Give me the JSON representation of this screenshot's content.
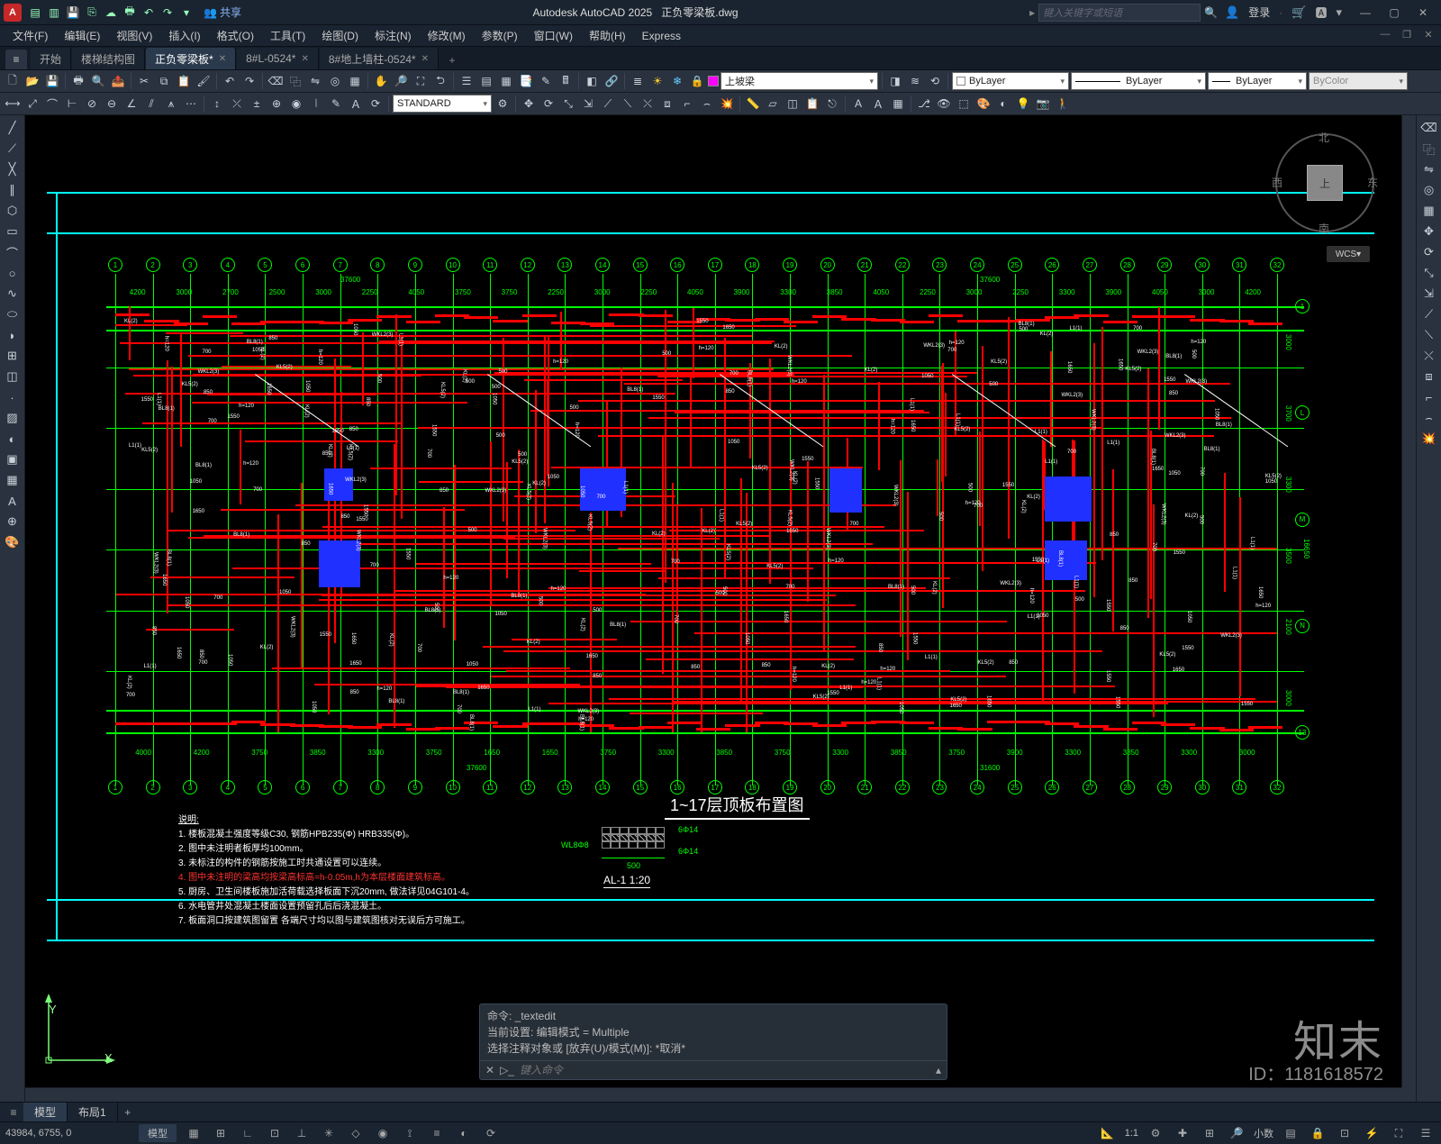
{
  "app": {
    "title": "Autodesk AutoCAD 2025",
    "filename": "正负零梁板.dwg",
    "logo_letter": "A"
  },
  "titlebar": {
    "share": "共享",
    "search_placeholder": "键入关键字或短语",
    "login": "登录"
  },
  "menus": [
    "文件(F)",
    "编辑(E)",
    "视图(V)",
    "插入(I)",
    "格式(O)",
    "工具(T)",
    "绘图(D)",
    "标注(N)",
    "修改(M)",
    "参数(P)",
    "窗口(W)",
    "帮助(H)",
    "Express"
  ],
  "filetabs": {
    "start": "开始",
    "tabs": [
      {
        "label": "楼梯结构图",
        "active": false
      },
      {
        "label": "正负零梁板*",
        "active": true
      },
      {
        "label": "8#L-0524*",
        "active": false
      },
      {
        "label": "8#地上墙柱-0524*",
        "active": false
      }
    ]
  },
  "toolbar2": {
    "layer_name": "上坡梁",
    "style_name": "STANDARD",
    "prop1": "ByLayer",
    "prop2": "ByLayer",
    "prop3": "ByLayer",
    "prop4": "ByColor"
  },
  "viewcube": {
    "top": "上",
    "n": "北",
    "s": "南",
    "e": "东",
    "w": "西"
  },
  "wcs": "WCS",
  "ucs": {
    "x": "X",
    "y": "Y"
  },
  "cmd": {
    "line1": "命令: _textedit",
    "line2": "当前设置: 编辑模式 = Multiple",
    "line3": "选择注释对象或 [放弃(U)/模式(M)]: *取消*",
    "placeholder": "键入命令"
  },
  "bottomtabs": {
    "tabs": [
      "模型",
      "布局1"
    ]
  },
  "status": {
    "coords": "43984, 6755, 0",
    "label_model": "模型",
    "scale": "1:1",
    "decimal": "小数"
  },
  "watermark": {
    "brand": "知末",
    "id": "ID：1181618572"
  },
  "drawing": {
    "title": "1~17层顶板布置图",
    "notes_heading": "说明:",
    "notes": [
      "1. 楼板混凝土强度等级C30, 钢筋HPB235(Φ) HRB335(Φ)。",
      "2. 图中未注明者板厚均100mm。",
      "3. 未标注的构件的钢筋按施工时共通设置可以连续。"
    ],
    "note_red": "4. 图中未注明的梁高均按梁高标高=h-0.05m,h为本层楼面建筑标高。",
    "notes2": [
      "5. 厨房、卫生间楼板施加活荷载选择板面下沉20mm, 做法详见04G101-4。",
      "6. 水电管井处混凝土楼面设置预留孔后后浇混凝土。",
      "7. 板面洞口按建筑图留置 各端尺寸均以图与建筑图核对无误后方可施工。"
    ],
    "legend_title": "AL-1  1:20",
    "legend_dim1": "6Φ14",
    "legend_dim2": "6Φ14",
    "legend_dim3": "500",
    "legend_side": "WL8Φ8",
    "top_dims": [
      "4200",
      "3000",
      "2700",
      "2500",
      "3000",
      "2250",
      "4050",
      "3750",
      "3750",
      "2250",
      "3000",
      "2250",
      "4050",
      "3900",
      "3300",
      "3850",
      "4050",
      "2250",
      "3000",
      "2250",
      "3300",
      "3900",
      "4050",
      "3000",
      "4200"
    ],
    "bot_dims": [
      "4000",
      "4200",
      "3750",
      "3850",
      "3300",
      "3750",
      "1650",
      "1650",
      "3750",
      "3300",
      "3850",
      "3750",
      "3300",
      "3850",
      "3750",
      "3900",
      "3300",
      "3850",
      "3300",
      "3000"
    ],
    "right_dims": [
      "3000",
      "3700",
      "3300",
      "3500",
      "2100",
      "3000"
    ],
    "total_dim": "37600",
    "total_dim2": "31600",
    "total_right": "16650",
    "grid_top_count": 32,
    "grid_bot_count": 32,
    "grid_right": [
      "1",
      "L",
      "M",
      "N",
      "13"
    ],
    "annot_samples": [
      "KL(2)",
      "L1(1)",
      "WKL2(3)",
      "h=120",
      "1050",
      "1550",
      "700",
      "500",
      "850",
      "BL8(1)",
      "KL5(2)",
      "1650"
    ]
  }
}
